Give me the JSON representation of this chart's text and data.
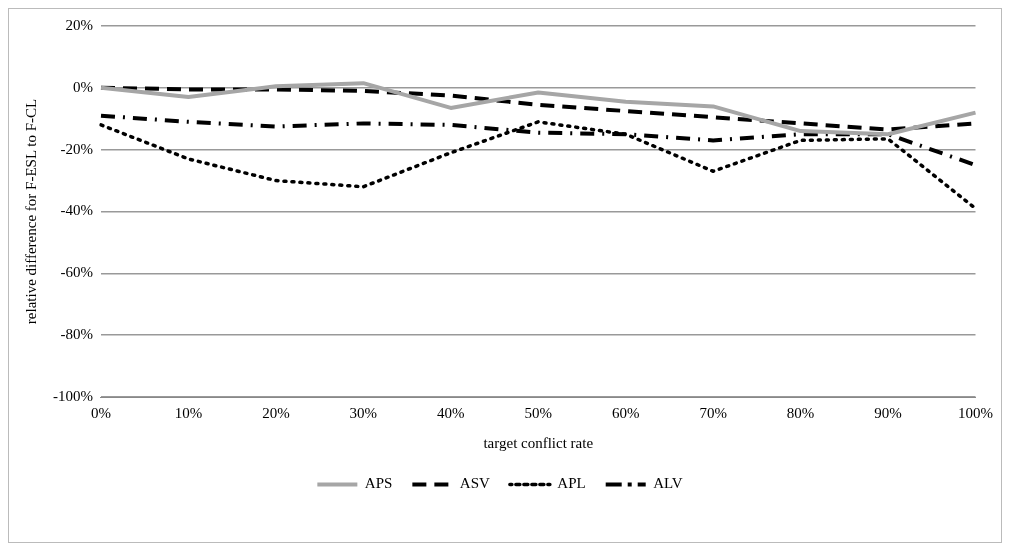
{
  "chart_data": {
    "type": "line",
    "xlabel": "target conflict rate",
    "ylabel": "relative difference for F-ESL to F-CL",
    "categories": [
      "0%",
      "10%",
      "20%",
      "30%",
      "40%",
      "50%",
      "60%",
      "70%",
      "80%",
      "90%",
      "100%"
    ],
    "series": [
      {
        "name": "APS",
        "color": "#a6a6a6",
        "line_style": "solid",
        "values": [
          0,
          -3,
          0.5,
          1.5,
          -6.5,
          -1.5,
          -4.5,
          -6,
          -14,
          -15,
          -8
        ]
      },
      {
        "name": "ASV",
        "color": "#000000",
        "line_style": "dashed",
        "values": [
          0,
          -0.5,
          -0.5,
          -1,
          -2.5,
          -5.5,
          -7.5,
          -9.5,
          -11.5,
          -13.5,
          -11.5
        ]
      },
      {
        "name": "APL",
        "color": "#000000",
        "line_style": "dotted",
        "values": [
          -12,
          -23,
          -30,
          -32,
          -21,
          -11,
          -15,
          -27,
          -17,
          -16.5,
          -39
        ]
      },
      {
        "name": "ALV",
        "color": "#000000",
        "line_style": "dashdot",
        "values": [
          -9,
          -11,
          -12.5,
          -11.5,
          -12,
          -14.5,
          -15,
          -17,
          -15,
          -15,
          -25
        ]
      }
    ],
    "ylim": [
      -100,
      20
    ],
    "yticks": [
      {
        "value": -100,
        "label": "-100%"
      },
      {
        "value": -80,
        "label": "-80%"
      },
      {
        "value": -60,
        "label": "-60%"
      },
      {
        "value": -40,
        "label": "-40%"
      },
      {
        "value": -20,
        "label": "-20%"
      },
      {
        "value": 0,
        "label": "0%"
      },
      {
        "value": 20,
        "label": "20%"
      }
    ],
    "grid": "y",
    "legend": "bottom"
  }
}
